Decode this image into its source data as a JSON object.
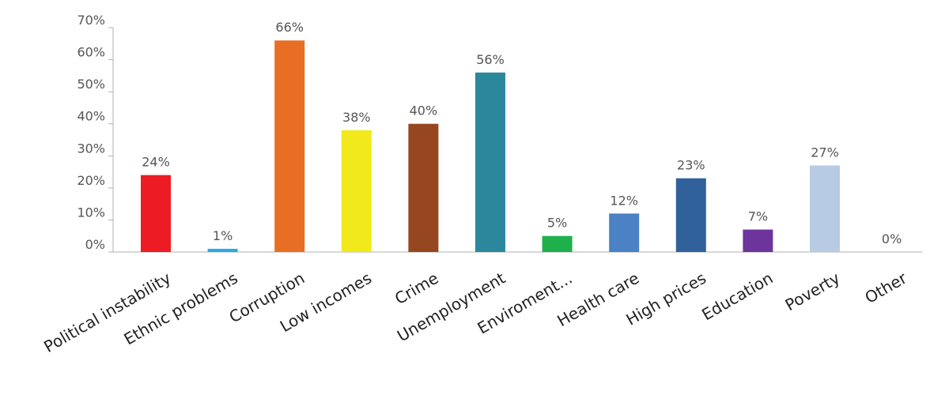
{
  "chart_data": {
    "type": "bar",
    "categories": [
      "Political instability",
      "Ethnic problems",
      "Corruption",
      "Low incomes",
      "Crime",
      "Unemployment",
      "Enviroment...",
      "Health care",
      "High prices",
      "Education",
      "Poverty",
      "Other"
    ],
    "values": [
      24,
      1,
      66,
      38,
      40,
      56,
      5,
      12,
      23,
      7,
      27,
      0
    ],
    "data_labels": [
      "24%",
      "1%",
      "66%",
      "38%",
      "40%",
      "56%",
      "5%",
      "12%",
      "23%",
      "7%",
      "27%",
      "0%"
    ],
    "colors": [
      "#ed1c24",
      "#29abe2",
      "#e86e25",
      "#f2e91c",
      "#96471f",
      "#2b879c",
      "#1eb04b",
      "#4a82c4",
      "#31619a",
      "#6c349c",
      "#b7cbe4",
      "#cccccc"
    ],
    "ylim": [
      0,
      70
    ],
    "yticks": [
      0,
      10,
      20,
      30,
      40,
      50,
      60,
      70
    ],
    "ytick_labels": [
      "0%",
      "10%",
      "20%",
      "30%",
      "40%",
      "50%",
      "60%",
      "70%"
    ],
    "grid": false,
    "legend": "none"
  }
}
